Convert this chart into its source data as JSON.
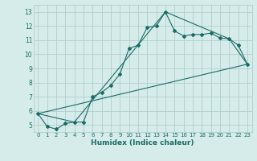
{
  "xlabel": "Humidex (Indice chaleur)",
  "ylabel": "",
  "bg_color": "#d6ecea",
  "grid_color": "#b0cfcc",
  "line_color": "#1a6b65",
  "xlim": [
    -0.5,
    23.5
  ],
  "ylim": [
    4.5,
    13.5
  ],
  "xticks": [
    0,
    1,
    2,
    3,
    4,
    5,
    6,
    7,
    8,
    9,
    10,
    11,
    12,
    13,
    14,
    15,
    16,
    17,
    18,
    19,
    20,
    21,
    22,
    23
  ],
  "yticks": [
    5,
    6,
    7,
    8,
    9,
    10,
    11,
    12,
    13
  ],
  "series1_x": [
    0,
    1,
    2,
    3,
    4,
    5,
    6,
    7,
    8,
    9,
    10,
    11,
    12,
    13,
    14,
    15,
    16,
    17,
    18,
    19,
    20,
    21,
    22,
    23
  ],
  "series1_y": [
    5.8,
    4.9,
    4.7,
    5.1,
    5.2,
    5.2,
    7.0,
    7.3,
    7.8,
    8.6,
    10.4,
    10.65,
    11.9,
    12.0,
    13.0,
    11.65,
    11.3,
    11.4,
    11.4,
    11.5,
    11.15,
    11.1,
    10.65,
    9.3
  ],
  "series2_x": [
    0,
    4,
    14,
    21,
    23
  ],
  "series2_y": [
    5.8,
    5.2,
    13.0,
    11.1,
    9.3
  ],
  "series3_x": [
    0,
    23
  ],
  "series3_y": [
    5.8,
    9.3
  ]
}
